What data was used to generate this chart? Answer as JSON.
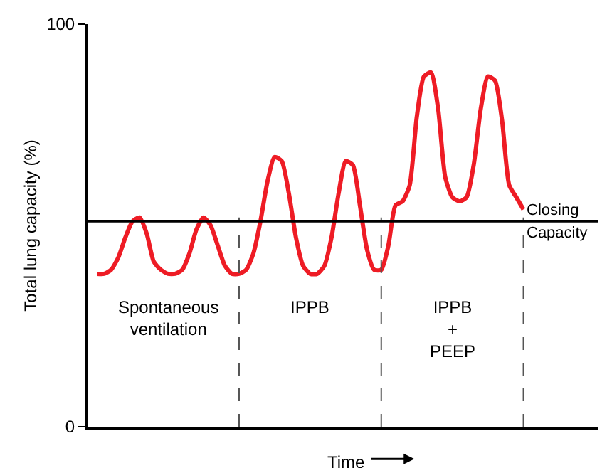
{
  "chart_data": {
    "type": "line",
    "xlabel": "Time",
    "ylabel": "Total lung capacity (%)",
    "categories": [
      null,
      null,
      null,
      null,
      null,
      null,
      null,
      null,
      null,
      null,
      null,
      null,
      null,
      null,
      null,
      null,
      null,
      null,
      null,
      null,
      null,
      null,
      null,
      null,
      null,
      null,
      null,
      null,
      null,
      null,
      null,
      null,
      null,
      null,
      null,
      null,
      null,
      null,
      null,
      null,
      null,
      null,
      null,
      null,
      null,
      null,
      null,
      null,
      null,
      null,
      null,
      null,
      null,
      null,
      null,
      null,
      null,
      null,
      null,
      null,
      null
    ],
    "series": [
      {
        "color": "#ee1c25",
        "values": [
          38,
          38,
          39,
          42,
          47,
          51,
          52,
          48,
          41,
          39,
          38,
          38,
          39,
          43,
          49,
          52,
          50,
          45,
          40,
          38,
          38,
          39,
          43,
          51,
          61,
          67,
          66,
          58,
          47,
          40,
          38,
          38,
          40,
          47,
          58,
          66,
          65,
          55,
          44,
          39,
          39,
          45,
          55,
          56,
          60,
          77,
          87,
          88,
          79,
          62,
          57,
          56,
          57,
          65,
          79,
          87,
          86,
          76,
          60,
          57,
          54
        ]
      }
    ],
    "ylim": [
      0,
      100
    ],
    "yticks": [
      0,
      100
    ],
    "tick_labels": "y",
    "marker": "none",
    "line_style": "solid",
    "ref_lines": [
      {
        "axis": "y",
        "value": 51,
        "label": "Closing Capacity",
        "color": "#000000",
        "line_style": "solid"
      }
    ],
    "annotations": [
      "Spontaneous\nventilation",
      "IPPB",
      "IPPB\n+\nPEEP"
    ]
  }
}
